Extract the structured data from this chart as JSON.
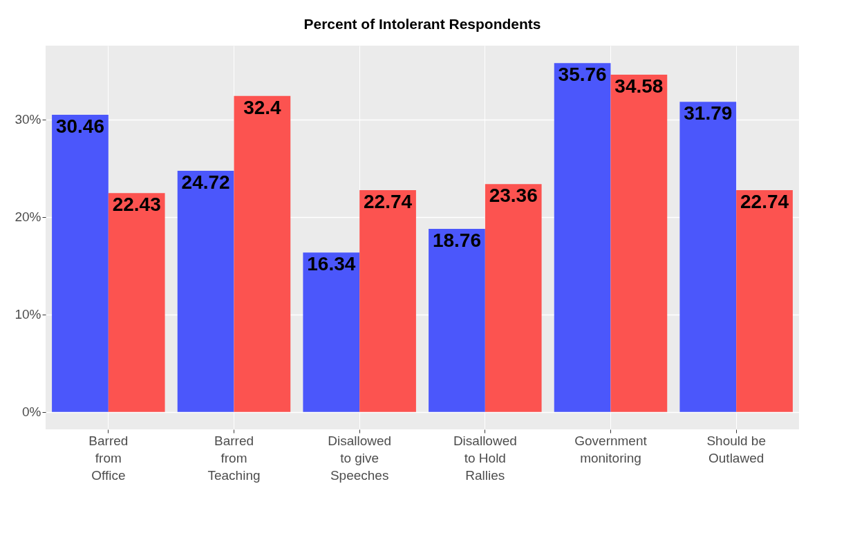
{
  "chart_data": {
    "type": "bar",
    "title": "Percent of Intolerant Respondents",
    "categories": [
      "Barred\nfrom\nOffice",
      "Barred\nfrom\nTeaching",
      "Disallowed\nto give\nSpeeches",
      "Disallowed\nto Hold\nRallies",
      "Government\nmonitoring",
      "Should be\nOutlawed"
    ],
    "series": [
      {
        "color": "#4b57fb",
        "values": [
          30.46,
          24.72,
          16.34,
          18.76,
          35.76,
          31.79
        ]
      },
      {
        "color": "#fc5350",
        "values": [
          22.43,
          32.4,
          22.74,
          23.36,
          34.58,
          22.74
        ]
      }
    ],
    "data_labels": true,
    "ylim": [
      -1.79,
      37.55
    ],
    "yticks": [
      {
        "value": 0,
        "label": "0%"
      },
      {
        "value": 10,
        "label": "10%"
      },
      {
        "value": 20,
        "label": "20%"
      },
      {
        "value": 30,
        "label": "30%"
      }
    ],
    "grid": true,
    "legend": false
  }
}
